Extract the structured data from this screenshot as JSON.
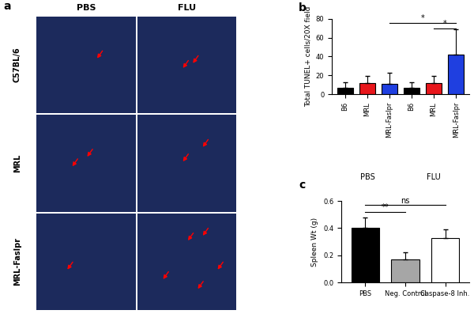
{
  "image_panel": {
    "label": "a",
    "columns": [
      "PBS",
      "FLU"
    ],
    "rows": [
      "C57BL/6",
      "MRL",
      "MRL-Faslpr"
    ]
  },
  "chart_data": [
    {
      "type": "bar",
      "label": "b",
      "ylabel": "Total TUNEL+ cells/20X field",
      "categories": [
        "B6",
        "MRL",
        "MRL-Faslpr",
        "B6",
        "MRL",
        "MRL-Faslpr"
      ],
      "values": [
        7,
        12,
        11,
        7,
        12,
        42
      ],
      "errors": [
        6,
        7,
        12,
        6,
        7,
        27
      ],
      "colors": [
        "#000000",
        "#e8161b",
        "#1f3fe0",
        "#000000",
        "#e8161b",
        "#1f3fe0"
      ],
      "groups": [
        {
          "name": "PBS",
          "start": 0,
          "end": 2
        },
        {
          "name": "FLU",
          "start": 3,
          "end": 5
        }
      ],
      "significance": [
        {
          "from": 2,
          "to": 5,
          "y": 76,
          "label": "*"
        },
        {
          "from": 4,
          "to": 5,
          "y": 70,
          "label": "*"
        }
      ],
      "ylim": [
        0,
        80
      ],
      "yticks": [
        0,
        20,
        40,
        60,
        80
      ]
    },
    {
      "type": "bar",
      "label": "c",
      "ylabel": "Spleen Wt (g)",
      "categories": [
        "PBS",
        "Neg. Control",
        "Caspase-8 Inh."
      ],
      "values": [
        0.4,
        0.17,
        0.33
      ],
      "errors": [
        0.08,
        0.05,
        0.06
      ],
      "colors": [
        "#000000",
        "#a6a6a6",
        "#ffffff"
      ],
      "significance": [
        {
          "from": 0,
          "to": 1,
          "y": 0.52,
          "label": "**"
        },
        {
          "from": 0,
          "to": 2,
          "y": 0.57,
          "label": "ns"
        }
      ],
      "ylim": [
        0,
        0.6
      ],
      "yticks": [
        0.0,
        0.2,
        0.4,
        0.6
      ]
    }
  ]
}
